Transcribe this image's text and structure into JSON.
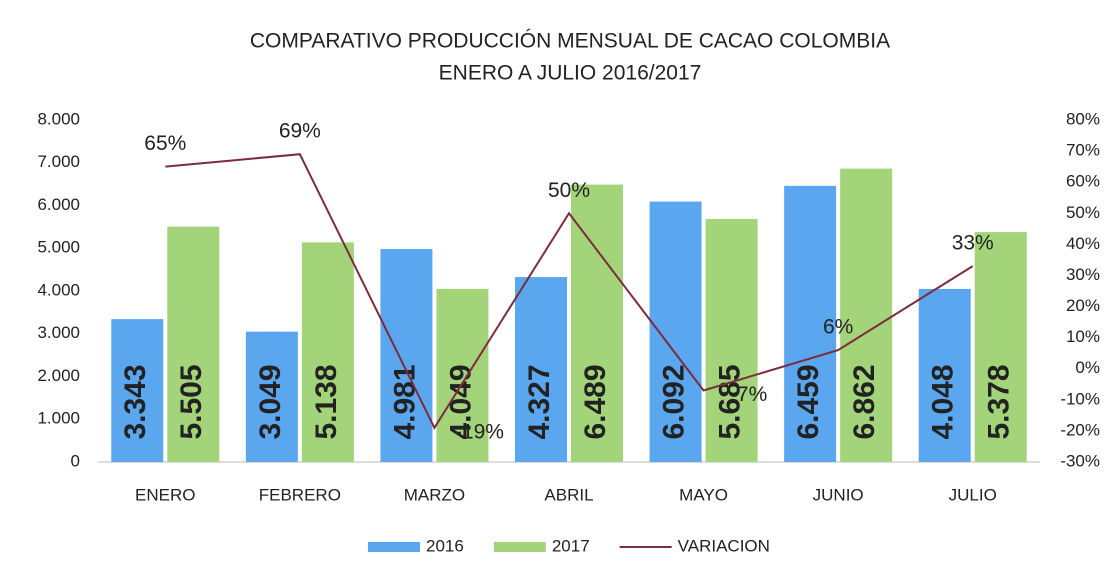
{
  "chart_data": {
    "type": "bar_line",
    "title": "COMPARATIVO PRODUCCIÓN  MENSUAL DE CACAO COLOMBIA",
    "subtitle": "ENERO  A JULIO 2016/2017",
    "categories": [
      "ENERO",
      "FEBRERO",
      "MARZO",
      "ABRIL",
      "MAYO",
      "JUNIO",
      "JULIO"
    ],
    "series": [
      {
        "name": "2016",
        "color": "#5aa7ef",
        "values": [
          3343,
          3049,
          4981,
          4327,
          6092,
          6459,
          4048
        ],
        "value_labels": [
          "3.343",
          "3.049",
          "4.981",
          "4.327",
          "6.092",
          "6.459",
          "4.048"
        ]
      },
      {
        "name": "2017",
        "color": "#a3d47a",
        "values": [
          5505,
          5138,
          4049,
          6489,
          5685,
          6862,
          5378
        ],
        "value_labels": [
          "5.505",
          "5.138",
          "4.049",
          "6.489",
          "5.685",
          "6.862",
          "5.378"
        ]
      },
      {
        "name": "VARIACION",
        "color": "#7b2d3c",
        "axis": "y2",
        "values": [
          65,
          69,
          -19,
          50,
          -7,
          6,
          33
        ],
        "value_labels": [
          "65%",
          "69%",
          "-19%",
          "50%",
          "-7%",
          "6%",
          "33%"
        ]
      }
    ],
    "ylim": [
      0,
      8000
    ],
    "yticks": [
      0,
      {
        "value": 1000,
        "label": "1.000"
      },
      {
        "value": 2000,
        "label": "2.000"
      },
      {
        "value": 3000,
        "label": "3.000"
      },
      {
        "value": 4000,
        "label": "4.000"
      },
      {
        "value": 5000,
        "label": "5.000"
      },
      {
        "value": 6000,
        "label": "6.000"
      },
      {
        "value": 7000,
        "label": "7.000"
      },
      {
        "value": 8000,
        "label": "8.000"
      }
    ],
    "y2lim": [
      -30,
      80
    ],
    "y2ticks": [
      {
        "value": -30,
        "label": "-30%"
      },
      {
        "value": -20,
        "label": "-20%"
      },
      {
        "value": -10,
        "label": "-10%"
      },
      {
        "value": 0,
        "label": "0%"
      },
      {
        "value": 10,
        "label": "10%"
      },
      {
        "value": 20,
        "label": "20%"
      },
      {
        "value": 30,
        "label": "30%"
      },
      {
        "value": 40,
        "label": "40%"
      },
      {
        "value": 50,
        "label": "50%"
      },
      {
        "value": 60,
        "label": "60%"
      },
      {
        "value": 70,
        "label": "70%"
      },
      {
        "value": 80,
        "label": "80%"
      }
    ],
    "legend": "bottom"
  }
}
